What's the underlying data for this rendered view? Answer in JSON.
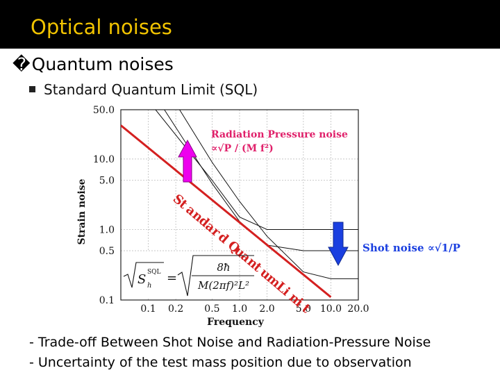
{
  "slide": {
    "title": "Optical noises",
    "bullet1_mark": "�",
    "bullet1": "Quantum noises",
    "bullet2": "Standard Quantum Limit (SQL)",
    "footer_lines": [
      "- Trade-off Between Shot Noise and Radiation-Pressure Noise",
      "- Uncertainty of the test mass position due to observation"
    ]
  },
  "chart_data": {
    "type": "line",
    "xlabel": "Frequency",
    "ylabel": "Strain noise",
    "log_x": true,
    "log_y": true,
    "xlim": [
      0.05,
      20
    ],
    "ylim": [
      0.1,
      50
    ],
    "x_ticks": [
      "0.1",
      "0.2",
      "0.5",
      "1.0",
      "2.0",
      "5.0",
      "10.0",
      "20.0"
    ],
    "y_ticks": [
      "50.0",
      "10.0",
      "5.0",
      "1.0",
      "0.5",
      "0.1"
    ],
    "grid": true,
    "sql_line": {
      "x": [
        0.05,
        10
      ],
      "y": [
        30,
        0.11
      ],
      "color": "#d42020"
    },
    "sql_label": "Standard Quantum Limit",
    "noise_curves": [
      {
        "x": [
          0.12,
          0.5,
          1.0,
          2.0,
          5.0,
          10.0,
          20.0
        ],
        "y": [
          50.0,
          5.0,
          1.5,
          1.0,
          1.0,
          1.0,
          1.0
        ]
      },
      {
        "x": [
          0.15,
          0.5,
          1.0,
          2.0,
          5.0,
          10.0,
          20.0
        ],
        "y": [
          50.0,
          4.5,
          1.3,
          0.6,
          0.5,
          0.5,
          0.5
        ]
      },
      {
        "x": [
          0.22,
          0.5,
          1.0,
          2.0,
          5.0,
          10.0,
          20.0
        ],
        "y": [
          50.0,
          9.0,
          2.5,
          0.8,
          0.25,
          0.2,
          0.2
        ]
      }
    ],
    "radiation_label": "Radiation Pressure noise",
    "radiation_formula": "∝√P  / (M f²)",
    "radiation_arrow_color": "#ee00ee",
    "shot_label": "Shot noise ∝√1/P",
    "shot_arrow_color": "#1a3fe0",
    "formula_lhs": "√S",
    "formula_lhs_sup": "SQL",
    "formula_lhs_sub": "h",
    "formula_eq": "=",
    "formula_num": "8ħ",
    "formula_den": "M(2πf)²L²"
  }
}
